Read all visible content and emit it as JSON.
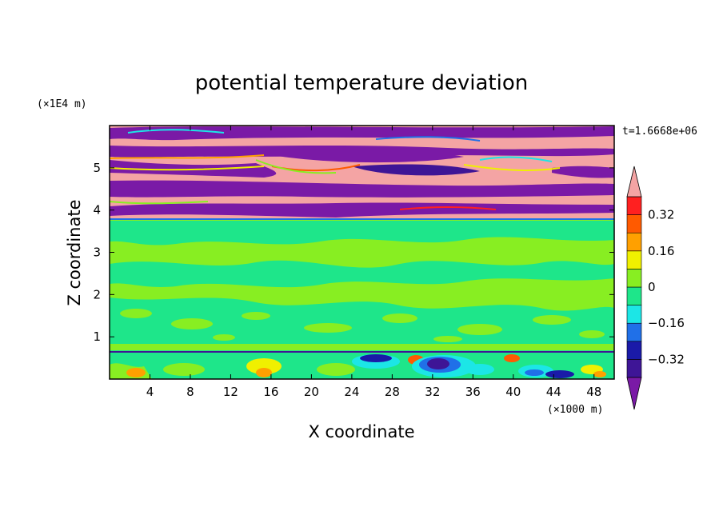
{
  "chart_data": {
    "type": "heatmap",
    "title": "potential temperature deviation",
    "xlabel": "X coordinate",
    "ylabel": "Z coordinate",
    "x_unit": "(×1000 m)",
    "y_unit": "(×1E4 m)",
    "time_label": "t=1.6668e+06",
    "xlim": [
      0,
      50
    ],
    "ylim": [
      0,
      6
    ],
    "x_ticks": [
      4,
      8,
      12,
      16,
      20,
      24,
      28,
      32,
      36,
      40,
      44,
      48
    ],
    "y_ticks": [
      1,
      2,
      3,
      4,
      5
    ],
    "colorbar": {
      "levels": [
        -0.4,
        -0.32,
        -0.24,
        -0.16,
        -0.08,
        0,
        0.08,
        0.16,
        0.24,
        0.32,
        0.4
      ],
      "tick_labels": [
        "0.32",
        "0.16",
        "0",
        "−0.16",
        "−0.32"
      ],
      "tick_values": [
        0.32,
        0.16,
        0,
        -0.16,
        -0.32
      ],
      "colors": [
        "#7a1aa6",
        "#3e1596",
        "#1a1aa8",
        "#2070e8",
        "#1ce6e6",
        "#1ee68a",
        "#88ee22",
        "#f0f000",
        "#ffa000",
        "#ff5a00",
        "#ff2020",
        "#f4a4a4"
      ]
    },
    "layers": [
      {
        "z_range": [
          3.75,
          6
        ],
        "pattern": "alternating pink/purple bands with multicolor transitions"
      },
      {
        "z_range": [
          0.6,
          3.75
        ],
        "pattern": "green / light-green patches, values near 0"
      },
      {
        "z_range": [
          0,
          0.6
        ],
        "pattern": "mixed values; negative blue/purple cell near x=30-36, orange near x=2, 15, 40"
      }
    ]
  }
}
